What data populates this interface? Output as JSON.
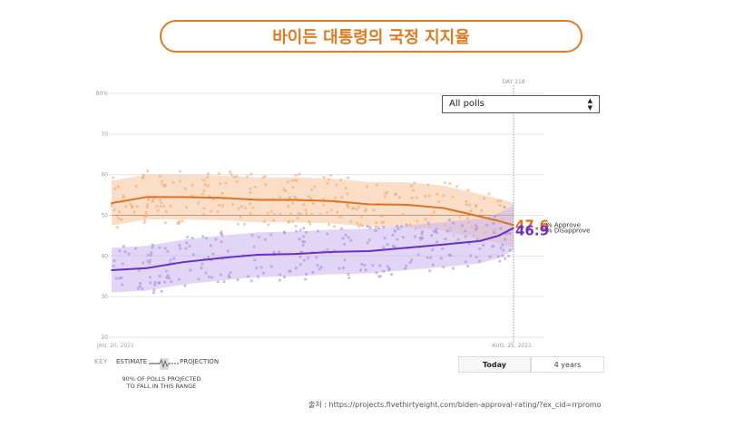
{
  "header": {
    "title": "바이든 대통령의 국정 지지율"
  },
  "controls": {
    "poll_select": "All polls",
    "toggle_today": "Today",
    "toggle_4years": "4 years"
  },
  "key": {
    "label": "KEY",
    "estimate": "ESTIMATE",
    "projection": "PROJECTION",
    "note_line1": "90% OF POLLS PROJECTED",
    "note_line2": "TO FALL IN THIS RANGE"
  },
  "source": "출처 : https://projects.fivethirtyeight.com/biden-approval-rating/?ex_cid=rrpromo",
  "colors": {
    "approve": "#e0721c",
    "disapprove": "#6a2fc4",
    "accent": "#e07b1f"
  },
  "chart_data": {
    "type": "line",
    "x_label_start": "JAN. 20, 2021",
    "x_label_end": "AUG. 25, 2021",
    "marker_label": "DAY 218",
    "y_ticks": [
      "20",
      "30",
      "40",
      "50",
      "60",
      "70",
      "80%"
    ],
    "ylim": [
      20,
      80
    ],
    "grid": true,
    "x": [
      1,
      20,
      40,
      60,
      80,
      100,
      120,
      140,
      160,
      180,
      200,
      210,
      218
    ],
    "series": [
      {
        "name": "Approve",
        "values": [
          53.0,
          54.5,
          54.5,
          54.3,
          53.8,
          53.8,
          53.5,
          52.7,
          52.6,
          51.8,
          49.7,
          48.6,
          47.6
        ],
        "end_label": "47.6",
        "label_suffix": "% Approve"
      },
      {
        "name": "Disapprove",
        "values": [
          36.5,
          37.0,
          38.5,
          39.5,
          40.3,
          40.5,
          41.0,
          41.2,
          42.0,
          42.8,
          43.7,
          45.0,
          46.9
        ],
        "end_label": "46.9",
        "label_suffix": "% Disapprove"
      }
    ]
  }
}
